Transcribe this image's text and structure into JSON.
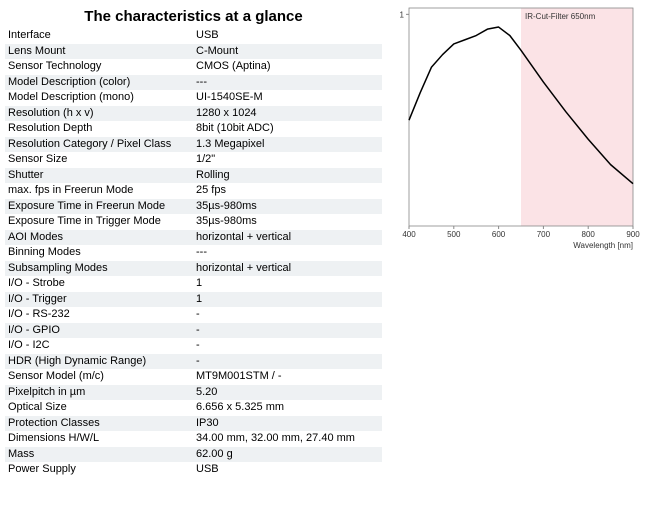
{
  "title": "The characteristics at a glance",
  "table": {
    "rows": [
      [
        "Interface",
        "USB"
      ],
      [
        "Lens Mount",
        "C-Mount"
      ],
      [
        "Sensor Technology",
        "CMOS (Aptina)"
      ],
      [
        "Model Description (color)",
        "---"
      ],
      [
        "Model Description (mono)",
        "UI-1540SE-M"
      ],
      [
        "Resolution (h x v)",
        "1280 x 1024"
      ],
      [
        "Resolution Depth",
        "8bit (10bit ADC)"
      ],
      [
        "Resolution Category / Pixel Class",
        "1.3 Megapixel"
      ],
      [
        "Sensor Size",
        "1/2\""
      ],
      [
        "Shutter",
        "Rolling"
      ],
      [
        "max. fps in Freerun Mode",
        "25 fps"
      ],
      [
        "Exposure Time in Freerun Mode",
        "35µs-980ms"
      ],
      [
        "Exposure Time in Trigger Mode",
        "35µs-980ms"
      ],
      [
        "AOI Modes",
        "horizontal + vertical"
      ],
      [
        "Binning Modes",
        "---"
      ],
      [
        "Subsampling Modes",
        "horizontal + vertical"
      ],
      [
        "I/O - Strobe",
        "1"
      ],
      [
        "I/O - Trigger",
        "1"
      ],
      [
        "I/O - RS-232",
        "-"
      ],
      [
        "I/O - GPIO",
        "-"
      ],
      [
        "I/O - I2C",
        "-"
      ],
      [
        "HDR (High Dynamic Range)",
        "-"
      ],
      [
        "Sensor Model (m/c)",
        "MT9M001STM / -"
      ],
      [
        "Pixelpitch in µm",
        "5.20"
      ],
      [
        "Optical Size",
        "6.656 x 5.325 mm"
      ],
      [
        "Protection Classes",
        "IP30"
      ],
      [
        "Dimensions H/W/L",
        "34.00 mm, 32.00 mm, 27.40 mm"
      ],
      [
        "Mass",
        "62.00 g"
      ],
      [
        "Power Supply",
        "USB"
      ]
    ]
  },
  "chart_data": {
    "type": "line",
    "x_label": "Wavelength [nm]",
    "x": [
      400,
      425,
      450,
      475,
      500,
      525,
      550,
      575,
      600,
      625,
      650,
      700,
      750,
      800,
      850,
      900
    ],
    "series": [
      {
        "color": "#000000",
        "values": [
          0.5,
          0.63,
          0.75,
          0.81,
          0.86,
          0.88,
          0.9,
          0.93,
          0.94,
          0.9,
          0.83,
          0.68,
          0.54,
          0.41,
          0.29,
          0.2
        ]
      }
    ],
    "xlim": [
      400,
      900
    ],
    "xticks": [
      400,
      500,
      600,
      700,
      800,
      900
    ],
    "ylim": [
      0,
      1.03
    ],
    "yticks": [
      1
    ],
    "region": {
      "label": "IR-Cut-Filter 650nm",
      "xlim": [
        650,
        900
      ],
      "color": "#fbe3e6"
    }
  }
}
